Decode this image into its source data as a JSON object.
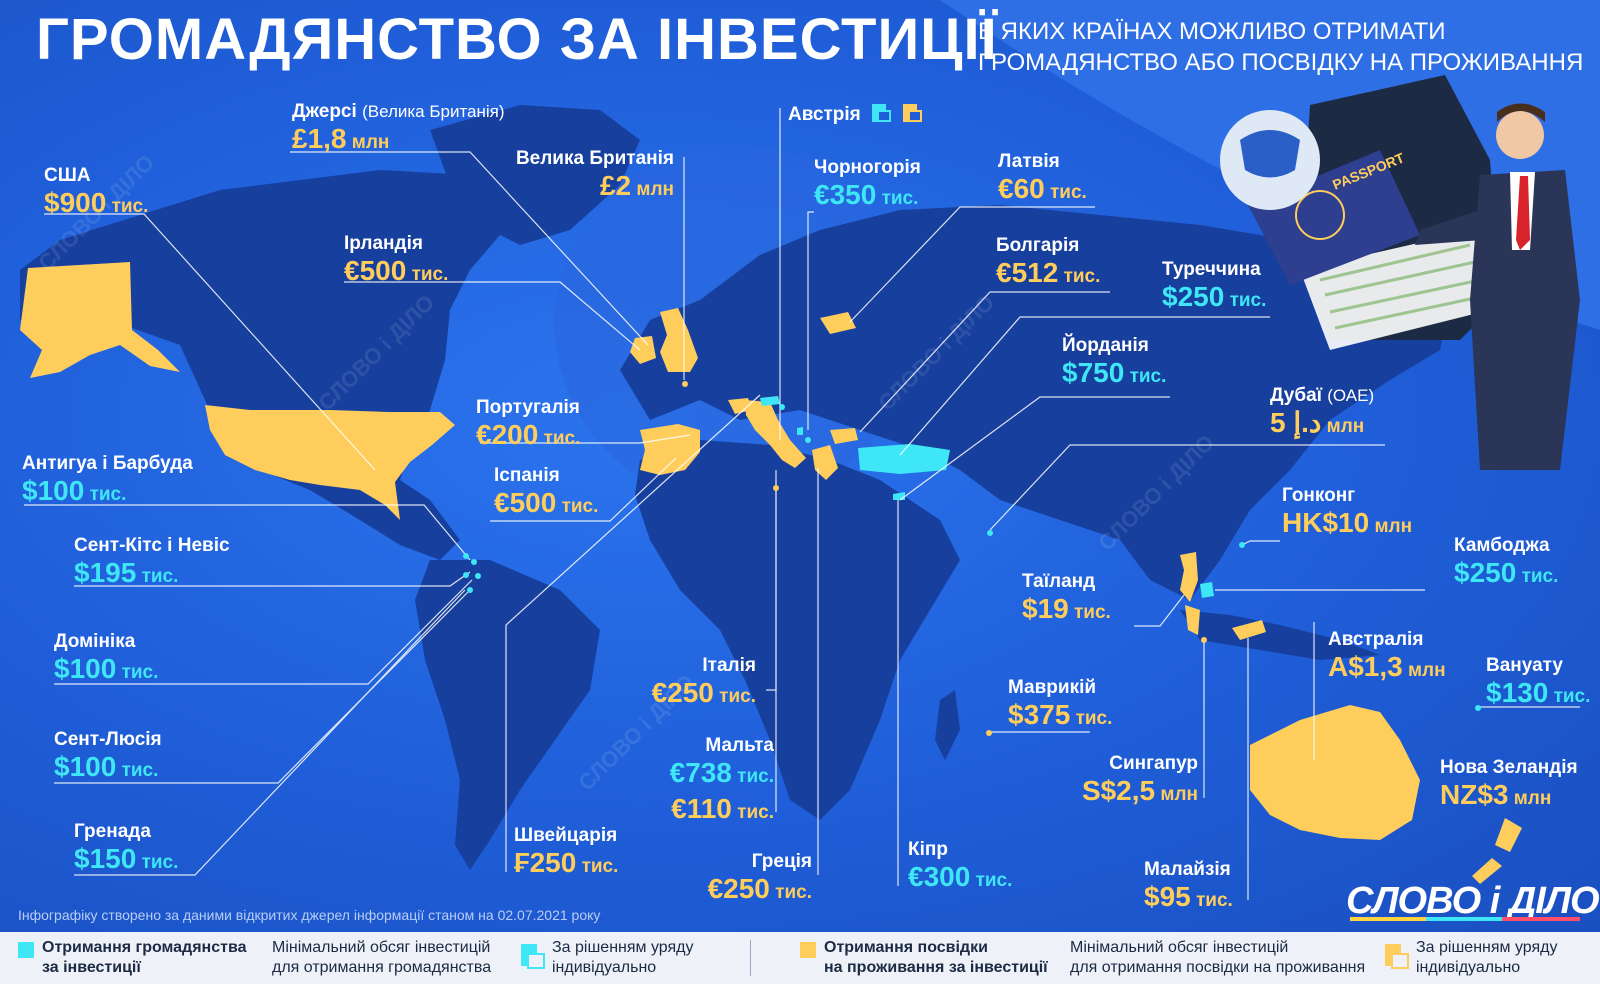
{
  "title": "ГРОМАДЯНСТВО ЗА ІНВЕСТИЦІЇ",
  "subtitle": {
    "line1": "В ЯКИХ КРАЇНАХ МОЖЛИВО ОТРИМАТИ",
    "line2": "ГРОМАДЯНСТВО АБО ПОСВІДКУ НА ПРОЖИВАННЯ"
  },
  "passport_text": "PASSPORT",
  "colors": {
    "citizenship": "#3fe6f6",
    "residence": "#ffcd5c",
    "background": "#1f5ed8",
    "land": "#173f9e"
  },
  "countries": {
    "usa": {
      "name": "США",
      "amount": "$900",
      "unit": " тис."
    },
    "jersey": {
      "name": "Джерсі",
      "sub": "(Велика Британія)",
      "amount": "£1,8",
      "unit": " млн"
    },
    "uk": {
      "name": "Велика Британія",
      "amount": "£2",
      "unit": " млн"
    },
    "ireland": {
      "name": "Ірландія",
      "amount": "€500",
      "unit": " тис."
    },
    "austria": {
      "name": "Австрія"
    },
    "montenegro": {
      "name": "Чорногорія",
      "amount": "€350",
      "unit": " тис."
    },
    "latvia": {
      "name": "Латвія",
      "amount": "€60",
      "unit": " тис."
    },
    "bulgaria": {
      "name": "Болгарія",
      "amount": "€512",
      "unit": " тис."
    },
    "turkey": {
      "name": "Туреччина",
      "amount": "$250",
      "unit": " тис."
    },
    "jordan": {
      "name": "Йорданія",
      "amount": "$750",
      "unit": " тис."
    },
    "dubai": {
      "name": "Дубаї",
      "sub": "(ОАЕ)",
      "amount": "د.إ 5",
      "unit": " млн"
    },
    "portugal": {
      "name": "Португалія",
      "amount": "€200",
      "unit": " тис."
    },
    "spain": {
      "name": "Іспанія",
      "amount": "€500",
      "unit": " тис."
    },
    "antigua": {
      "name": "Антигуа і Барбуда",
      "amount": "$100",
      "unit": " тис."
    },
    "stkitts": {
      "name": "Сент-Кітс і Невіс",
      "amount": "$195",
      "unit": " тис."
    },
    "dominica": {
      "name": "Домініка",
      "amount": "$100",
      "unit": " тис."
    },
    "stlucia": {
      "name": "Сент-Люсія",
      "amount": "$100",
      "unit": " тис."
    },
    "grenada": {
      "name": "Гренада",
      "amount": "$150",
      "unit": " тис."
    },
    "hongkong": {
      "name": "Гонконг",
      "amount": "HK$10",
      "unit": " млн"
    },
    "cambodia": {
      "name": "Камбоджа",
      "amount": "$250",
      "unit": " тис."
    },
    "thailand": {
      "name": "Таїланд",
      "amount": "$19",
      "unit": " тис."
    },
    "italy": {
      "name": "Італія",
      "amount": "€250",
      "unit": " тис."
    },
    "mauritius": {
      "name": "Маврикій",
      "amount": "$375",
      "unit": " тис."
    },
    "australia": {
      "name": "Австралія",
      "amount": "A$1,3",
      "unit": " млн"
    },
    "vanuatu": {
      "name": "Вануату",
      "amount": "$130",
      "unit": " тис."
    },
    "malta": {
      "name": "Мальта",
      "amount": "€738",
      "unit": " тис.",
      "amount2": "€110",
      "unit2": " тис."
    },
    "singapore": {
      "name": "Сингапур",
      "amount": "S$2,5",
      "unit": " млн"
    },
    "newzealand": {
      "name": "Нова Зеландія",
      "amount": "NZ$3",
      "unit": " млн"
    },
    "switzerland": {
      "name": "Швейцарія",
      "amount": "₣250",
      "unit": " тис."
    },
    "greece": {
      "name": "Греція",
      "amount": "€250",
      "unit": " тис."
    },
    "cyprus": {
      "name": "Кіпр",
      "amount": "€300",
      "unit": " тис."
    },
    "malaysia": {
      "name": "Малайзія",
      "amount": "$95",
      "unit": " тис."
    }
  },
  "source": "Інфографіку створено за даними відкритих джерел інформації станом на 02.07.2021 року",
  "logo": "СЛОВО і ДІЛО",
  "watermark": "СЛОВО і ДІЛО",
  "legend": {
    "citizenship_l1": "Отримання громадянства",
    "citizenship_l2": "за інвестиції",
    "min_citizenship_l1": "Мінімальний обсяг інвестицій",
    "min_citizenship_l2": "для отримання громадянства",
    "gov_l1": "За рішенням уряду",
    "gov_l2": "індивідуально",
    "residence_l1": "Отримання посвідки",
    "residence_l2": "на проживання за інвестиції",
    "min_residence_l1": "Мінімальний обсяг інвестицій",
    "min_residence_l2": "для отримання посвідки на проживання",
    "gov2_l1": "За рішенням уряду",
    "gov2_l2": "індивідуально"
  }
}
